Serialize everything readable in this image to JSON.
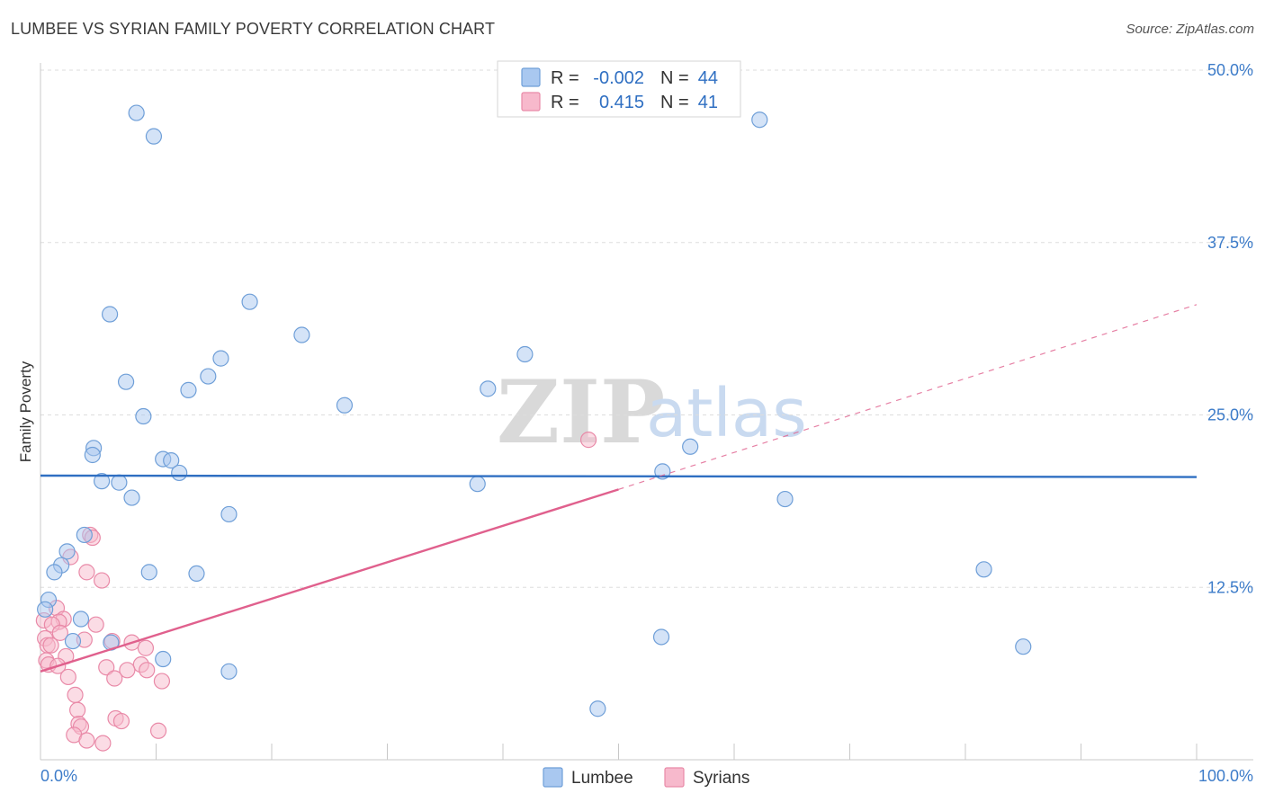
{
  "header": {
    "title": "LUMBEE VS SYRIAN FAMILY POVERTY CORRELATION CHART",
    "source": "Source: ZipAtlas.com"
  },
  "legend": {
    "rows": [
      {
        "r_label": "R =",
        "r_value": "-0.002",
        "n_label": "N =",
        "n_value": "44"
      },
      {
        "r_label": "R =",
        "r_value": "0.415",
        "n_label": "N =",
        "n_value": "41"
      }
    ]
  },
  "watermark": {
    "zip": "ZIP",
    "atlas": "atlas"
  },
  "colors": {
    "lumbee_fill": "#a9c8f0",
    "lumbee_stroke": "#6f9fd8",
    "lumbee_line": "#2f6fc2",
    "syrian_fill": "#f7b9cc",
    "syrian_stroke": "#e98aa8",
    "syrian_line": "#e0608d",
    "grid": "#dddddd",
    "tick_label": "#3d7cc9"
  },
  "chart_data": {
    "type": "scatter",
    "title": "LUMBEE VS SYRIAN FAMILY POVERTY CORRELATION CHART",
    "xlabel": "",
    "ylabel": "Family Poverty",
    "xlim": [
      0,
      100
    ],
    "ylim": [
      0,
      50
    ],
    "x_tick_labels": [
      "0.0%",
      "100.0%"
    ],
    "y_ticks": [
      12.5,
      25.0,
      37.5,
      50.0
    ],
    "y_tick_labels": [
      "12.5%",
      "25.0%",
      "37.5%",
      "50.0%"
    ],
    "grid": true,
    "legend_position": "top-center",
    "series": [
      {
        "name": "Lumbee",
        "R": -0.002,
        "N": 44,
        "trend": {
          "x": [
            0,
            100
          ],
          "y": [
            20.6,
            20.5
          ],
          "style": "solid"
        },
        "points": [
          {
            "x": 8.3,
            "y": 46.9
          },
          {
            "x": 9.8,
            "y": 45.2
          },
          {
            "x": 62.2,
            "y": 46.4
          },
          {
            "x": 18.1,
            "y": 33.2
          },
          {
            "x": 6.0,
            "y": 32.3
          },
          {
            "x": 22.6,
            "y": 30.8
          },
          {
            "x": 15.6,
            "y": 29.1
          },
          {
            "x": 41.9,
            "y": 29.4
          },
          {
            "x": 14.5,
            "y": 27.8
          },
          {
            "x": 7.4,
            "y": 27.4
          },
          {
            "x": 12.8,
            "y": 26.8
          },
          {
            "x": 38.7,
            "y": 26.9
          },
          {
            "x": 26.3,
            "y": 25.7
          },
          {
            "x": 8.9,
            "y": 24.9
          },
          {
            "x": 56.2,
            "y": 22.7
          },
          {
            "x": 4.6,
            "y": 22.6
          },
          {
            "x": 4.5,
            "y": 22.1
          },
          {
            "x": 10.6,
            "y": 21.8
          },
          {
            "x": 11.3,
            "y": 21.7
          },
          {
            "x": 12.0,
            "y": 20.8
          },
          {
            "x": 53.8,
            "y": 20.9
          },
          {
            "x": 5.3,
            "y": 20.2
          },
          {
            "x": 6.8,
            "y": 20.1
          },
          {
            "x": 37.8,
            "y": 20.0
          },
          {
            "x": 7.9,
            "y": 19.0
          },
          {
            "x": 64.4,
            "y": 18.9
          },
          {
            "x": 16.3,
            "y": 17.8
          },
          {
            "x": 3.8,
            "y": 16.3
          },
          {
            "x": 2.3,
            "y": 15.1
          },
          {
            "x": 1.8,
            "y": 14.1
          },
          {
            "x": 1.2,
            "y": 13.6
          },
          {
            "x": 9.4,
            "y": 13.6
          },
          {
            "x": 13.5,
            "y": 13.5
          },
          {
            "x": 81.6,
            "y": 13.8
          },
          {
            "x": 0.7,
            "y": 11.6
          },
          {
            "x": 0.4,
            "y": 10.9
          },
          {
            "x": 3.5,
            "y": 10.2
          },
          {
            "x": 2.8,
            "y": 8.6
          },
          {
            "x": 6.1,
            "y": 8.5
          },
          {
            "x": 53.7,
            "y": 8.9
          },
          {
            "x": 85.0,
            "y": 8.2
          },
          {
            "x": 10.6,
            "y": 7.3
          },
          {
            "x": 16.3,
            "y": 6.4
          },
          {
            "x": 48.2,
            "y": 3.7
          }
        ]
      },
      {
        "name": "Syrians",
        "R": 0.415,
        "N": 41,
        "trend": {
          "x": [
            0,
            50
          ],
          "y": [
            6.4,
            19.6
          ],
          "style": "solid",
          "extension": {
            "x": [
              50,
              100
            ],
            "y": [
              19.6,
              33.0
            ],
            "style": "dashed"
          }
        },
        "points": [
          {
            "x": 47.4,
            "y": 23.2
          },
          {
            "x": 4.3,
            "y": 16.3
          },
          {
            "x": 4.5,
            "y": 16.1
          },
          {
            "x": 2.6,
            "y": 14.7
          },
          {
            "x": 4.0,
            "y": 13.6
          },
          {
            "x": 5.3,
            "y": 13.0
          },
          {
            "x": 1.4,
            "y": 11.0
          },
          {
            "x": 0.3,
            "y": 10.1
          },
          {
            "x": 2.0,
            "y": 10.2
          },
          {
            "x": 1.6,
            "y": 10.0
          },
          {
            "x": 1.0,
            "y": 9.8
          },
          {
            "x": 4.8,
            "y": 9.8
          },
          {
            "x": 1.7,
            "y": 9.2
          },
          {
            "x": 0.4,
            "y": 8.8
          },
          {
            "x": 3.8,
            "y": 8.7
          },
          {
            "x": 6.2,
            "y": 8.6
          },
          {
            "x": 7.9,
            "y": 8.5
          },
          {
            "x": 0.6,
            "y": 8.3
          },
          {
            "x": 0.9,
            "y": 8.3
          },
          {
            "x": 9.1,
            "y": 8.1
          },
          {
            "x": 2.2,
            "y": 7.5
          },
          {
            "x": 0.5,
            "y": 7.2
          },
          {
            "x": 0.7,
            "y": 6.9
          },
          {
            "x": 1.5,
            "y": 6.8
          },
          {
            "x": 5.7,
            "y": 6.7
          },
          {
            "x": 8.7,
            "y": 6.9
          },
          {
            "x": 7.5,
            "y": 6.5
          },
          {
            "x": 9.2,
            "y": 6.5
          },
          {
            "x": 2.4,
            "y": 6.0
          },
          {
            "x": 6.4,
            "y": 5.9
          },
          {
            "x": 10.5,
            "y": 5.7
          },
          {
            "x": 3.0,
            "y": 4.7
          },
          {
            "x": 3.2,
            "y": 3.6
          },
          {
            "x": 6.5,
            "y": 3.0
          },
          {
            "x": 7.0,
            "y": 2.8
          },
          {
            "x": 3.3,
            "y": 2.6
          },
          {
            "x": 3.5,
            "y": 2.4
          },
          {
            "x": 10.2,
            "y": 2.1
          },
          {
            "x": 2.9,
            "y": 1.8
          },
          {
            "x": 4.0,
            "y": 1.4
          },
          {
            "x": 5.4,
            "y": 1.2
          }
        ]
      }
    ]
  }
}
